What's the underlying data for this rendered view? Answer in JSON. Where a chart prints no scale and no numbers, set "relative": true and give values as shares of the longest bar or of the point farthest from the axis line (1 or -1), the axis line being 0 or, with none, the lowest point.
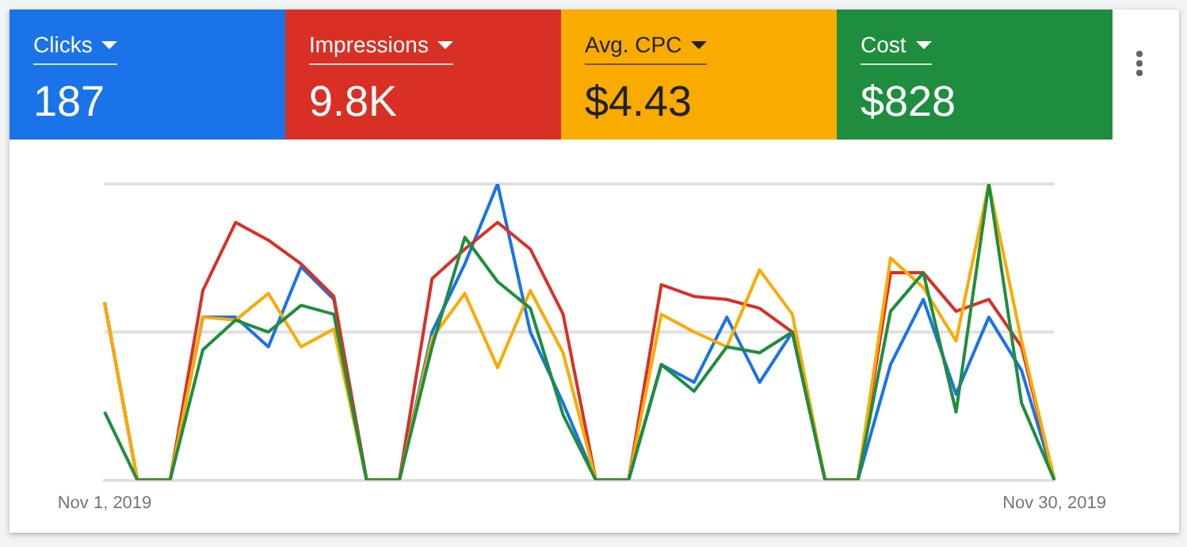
{
  "chart_data": {
    "type": "line",
    "relative": true,
    "marker": "none",
    "line_style": "solid",
    "categories": [
      "Nov 1, 2019",
      null,
      null,
      null,
      null,
      null,
      null,
      null,
      null,
      null,
      null,
      null,
      null,
      null,
      null,
      null,
      null,
      null,
      null,
      null,
      null,
      null,
      null,
      null,
      null,
      null,
      null,
      null,
      null,
      "Nov 30, 2019"
    ],
    "series": [
      {
        "name": "Clicks",
        "color": "#1a73e8",
        "values": [
          null,
          0,
          0,
          0.55,
          0.55,
          0.45,
          0.72,
          0.61,
          0,
          0,
          0.5,
          0.73,
          1,
          0.5,
          0.26,
          0,
          0,
          0.39,
          0.33,
          0.55,
          0.33,
          0.5,
          0,
          0,
          0.39,
          0.61,
          0.29,
          0.55,
          0.37,
          0
        ]
      },
      {
        "name": "Impressions",
        "color": "#d93025",
        "values": [
          0.6,
          0,
          0,
          0.64,
          0.87,
          0.81,
          0.73,
          0.62,
          0,
          0,
          0.68,
          0.78,
          0.87,
          0.78,
          0.56,
          0,
          0,
          0.66,
          0.62,
          0.61,
          0.58,
          0.5,
          0,
          0,
          0.7,
          0.7,
          0.57,
          0.61,
          0.45,
          0
        ]
      },
      {
        "name": "Avg. CPC",
        "color": "#f9ab00",
        "values": [
          0.6,
          0,
          0,
          0.55,
          0.54,
          0.63,
          0.45,
          0.51,
          0,
          0,
          0.48,
          0.63,
          0.38,
          0.64,
          0.43,
          0,
          0,
          0.56,
          0.5,
          0.45,
          0.71,
          0.56,
          0,
          0,
          0.75,
          0.65,
          0.47,
          1,
          0.47,
          0
        ]
      },
      {
        "name": "Cost",
        "color": "#1e8e3e",
        "values": [
          0.23,
          0,
          0,
          0.44,
          0.54,
          0.5,
          0.59,
          0.56,
          0,
          0,
          0.45,
          0.82,
          0.67,
          0.58,
          0.22,
          0,
          0,
          0.39,
          0.3,
          0.45,
          0.43,
          0.5,
          0,
          0,
          0.57,
          0.7,
          0.23,
          1,
          0.26,
          0
        ]
      }
    ],
    "ref_lines": [
      {
        "axis": "y",
        "value": 0.5,
        "color": "#e0e0e0"
      },
      {
        "axis": "y",
        "value": 1,
        "color": "#e0e0e0"
      }
    ],
    "annotations": [
      "187",
      "9.8K",
      "$4.43",
      "$828"
    ]
  }
}
